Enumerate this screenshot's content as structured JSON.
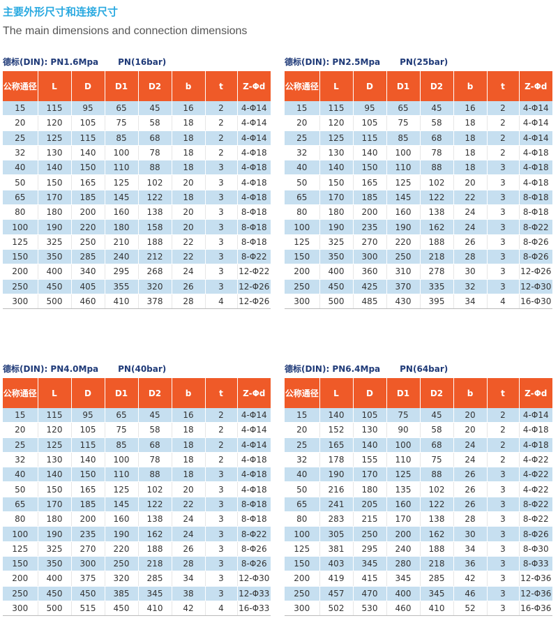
{
  "title_cn": "主要外形尺寸和连接尺寸",
  "title_en": "The main dimensions and connection dimensions",
  "headers": [
    "公称通径",
    "L",
    "D",
    "D1",
    "D2",
    "b",
    "t",
    "Z-Φd"
  ],
  "tables": [
    {
      "standard": "德标(DIN): PN1.6Mpa",
      "bar": "PN(16bar)",
      "rows": [
        [
          "15",
          "115",
          "95",
          "65",
          "45",
          "16",
          "2",
          "4-Φ14"
        ],
        [
          "20",
          "120",
          "105",
          "75",
          "58",
          "18",
          "2",
          "4-Φ14"
        ],
        [
          "25",
          "125",
          "115",
          "85",
          "68",
          "18",
          "2",
          "4-Φ14"
        ],
        [
          "32",
          "130",
          "140",
          "100",
          "78",
          "18",
          "2",
          "4-Φ18"
        ],
        [
          "40",
          "140",
          "150",
          "110",
          "88",
          "18",
          "3",
          "4-Φ18"
        ],
        [
          "50",
          "150",
          "165",
          "125",
          "102",
          "20",
          "3",
          "4-Φ18"
        ],
        [
          "65",
          "170",
          "185",
          "145",
          "122",
          "18",
          "3",
          "4-Φ18"
        ],
        [
          "80",
          "180",
          "200",
          "160",
          "138",
          "20",
          "3",
          "8-Φ18"
        ],
        [
          "100",
          "190",
          "220",
          "180",
          "158",
          "20",
          "3",
          "8-Φ18"
        ],
        [
          "125",
          "325",
          "250",
          "210",
          "188",
          "22",
          "3",
          "8-Φ18"
        ],
        [
          "150",
          "350",
          "285",
          "240",
          "212",
          "22",
          "3",
          "8-Φ22"
        ],
        [
          "200",
          "400",
          "340",
          "295",
          "268",
          "24",
          "3",
          "12-Φ22"
        ],
        [
          "250",
          "450",
          "405",
          "355",
          "320",
          "26",
          "3",
          "12-Φ26"
        ],
        [
          "300",
          "500",
          "460",
          "410",
          "378",
          "28",
          "4",
          "12-Φ26"
        ]
      ]
    },
    {
      "standard": "德标(DIN): PN2.5Mpa",
      "bar": "PN(25bar)",
      "rows": [
        [
          "15",
          "115",
          "95",
          "65",
          "45",
          "16",
          "2",
          "4-Φ14"
        ],
        [
          "20",
          "120",
          "105",
          "75",
          "58",
          "18",
          "2",
          "4-Φ14"
        ],
        [
          "25",
          "125",
          "115",
          "85",
          "68",
          "18",
          "2",
          "4-Φ14"
        ],
        [
          "32",
          "130",
          "140",
          "100",
          "78",
          "18",
          "2",
          "4-Φ18"
        ],
        [
          "40",
          "140",
          "150",
          "110",
          "88",
          "18",
          "3",
          "4-Φ18"
        ],
        [
          "50",
          "150",
          "165",
          "125",
          "102",
          "20",
          "3",
          "4-Φ18"
        ],
        [
          "65",
          "170",
          "185",
          "145",
          "122",
          "22",
          "3",
          "8-Φ18"
        ],
        [
          "80",
          "180",
          "200",
          "160",
          "138",
          "24",
          "3",
          "8-Φ18"
        ],
        [
          "100",
          "190",
          "235",
          "190",
          "162",
          "24",
          "3",
          "8-Φ22"
        ],
        [
          "125",
          "325",
          "270",
          "220",
          "188",
          "26",
          "3",
          "8-Φ26"
        ],
        [
          "150",
          "350",
          "300",
          "250",
          "218",
          "28",
          "3",
          "8-Φ26"
        ],
        [
          "200",
          "400",
          "360",
          "310",
          "278",
          "30",
          "3",
          "12-Φ26"
        ],
        [
          "250",
          "450",
          "425",
          "370",
          "335",
          "32",
          "3",
          "12-Φ30"
        ],
        [
          "300",
          "500",
          "485",
          "430",
          "395",
          "34",
          "4",
          "16-Φ30"
        ]
      ]
    },
    {
      "standard": "德标(DIN): PN4.0Mpa",
      "bar": "PN(40bar)",
      "rows": [
        [
          "15",
          "115",
          "95",
          "65",
          "45",
          "16",
          "2",
          "4-Φ14"
        ],
        [
          "20",
          "120",
          "105",
          "75",
          "58",
          "18",
          "2",
          "4-Φ14"
        ],
        [
          "25",
          "125",
          "115",
          "85",
          "68",
          "18",
          "2",
          "4-Φ14"
        ],
        [
          "32",
          "130",
          "140",
          "100",
          "78",
          "18",
          "2",
          "4-Φ18"
        ],
        [
          "40",
          "140",
          "150",
          "110",
          "88",
          "18",
          "3",
          "4-Φ18"
        ],
        [
          "50",
          "150",
          "165",
          "125",
          "102",
          "20",
          "3",
          "4-Φ18"
        ],
        [
          "65",
          "170",
          "185",
          "145",
          "122",
          "22",
          "3",
          "8-Φ18"
        ],
        [
          "80",
          "180",
          "200",
          "160",
          "138",
          "24",
          "3",
          "8-Φ18"
        ],
        [
          "100",
          "190",
          "235",
          "190",
          "162",
          "24",
          "3",
          "8-Φ22"
        ],
        [
          "125",
          "325",
          "270",
          "220",
          "188",
          "26",
          "3",
          "8-Φ26"
        ],
        [
          "150",
          "350",
          "300",
          "250",
          "218",
          "28",
          "3",
          "8-Φ26"
        ],
        [
          "200",
          "400",
          "375",
          "320",
          "285",
          "34",
          "3",
          "12-Φ30"
        ],
        [
          "250",
          "450",
          "450",
          "385",
          "345",
          "38",
          "3",
          "12-Φ33"
        ],
        [
          "300",
          "500",
          "515",
          "450",
          "410",
          "42",
          "4",
          "16-Φ33"
        ]
      ]
    },
    {
      "standard": "德标(DIN): PN6.4Mpa",
      "bar": "PN(64bar)",
      "rows": [
        [
          "15",
          "140",
          "105",
          "75",
          "45",
          "20",
          "2",
          "4-Φ14"
        ],
        [
          "20",
          "152",
          "130",
          "90",
          "58",
          "20",
          "2",
          "4-Φ18"
        ],
        [
          "25",
          "165",
          "140",
          "100",
          "68",
          "24",
          "2",
          "4-Φ18"
        ],
        [
          "32",
          "178",
          "155",
          "110",
          "75",
          "24",
          "2",
          "4-Φ22"
        ],
        [
          "40",
          "190",
          "170",
          "125",
          "88",
          "26",
          "3",
          "4-Φ22"
        ],
        [
          "50",
          "216",
          "180",
          "135",
          "102",
          "26",
          "3",
          "4-Φ22"
        ],
        [
          "65",
          "241",
          "205",
          "160",
          "122",
          "26",
          "3",
          "8-Φ22"
        ],
        [
          "80",
          "283",
          "215",
          "170",
          "138",
          "28",
          "3",
          "8-Φ22"
        ],
        [
          "100",
          "305",
          "250",
          "200",
          "162",
          "30",
          "3",
          "8-Φ26"
        ],
        [
          "125",
          "381",
          "295",
          "240",
          "188",
          "34",
          "3",
          "8-Φ30"
        ],
        [
          "150",
          "403",
          "345",
          "280",
          "218",
          "36",
          "3",
          "8-Φ33"
        ],
        [
          "200",
          "419",
          "415",
          "345",
          "285",
          "42",
          "3",
          "12-Φ36"
        ],
        [
          "250",
          "457",
          "470",
          "400",
          "345",
          "46",
          "3",
          "12-Φ36"
        ],
        [
          "300",
          "502",
          "530",
          "460",
          "410",
          "52",
          "3",
          "16-Φ36"
        ]
      ]
    }
  ]
}
